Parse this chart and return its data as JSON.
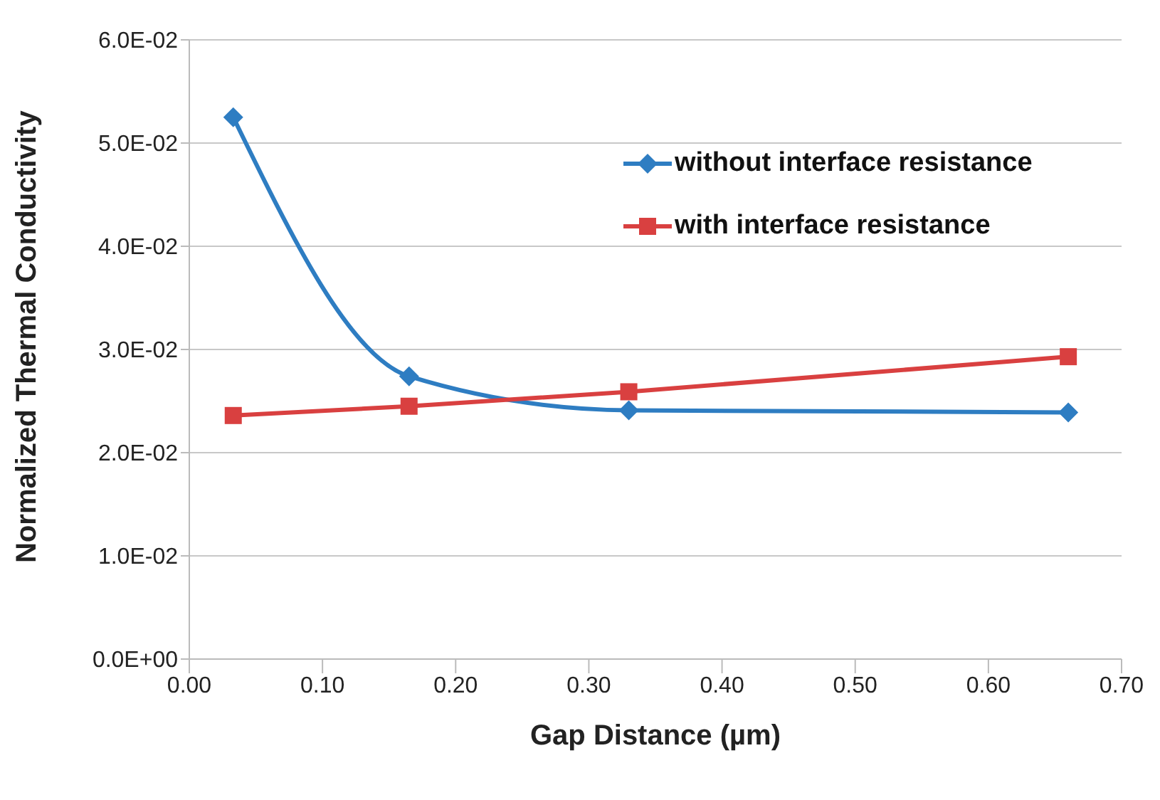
{
  "chart_data": {
    "type": "line",
    "xlabel": "Gap Distance (µm)",
    "ylabel": "Normalized Thermal Conductivity",
    "x": [
      0.033,
      0.165,
      0.33,
      0.66
    ],
    "series": [
      {
        "name": "without interface resistance",
        "color": "#2e7dc2",
        "marker": "diamond",
        "values": [
          0.0525,
          0.0274,
          0.0241,
          0.0239
        ]
      },
      {
        "name": "with interface resistance",
        "color": "#d94040",
        "marker": "square",
        "values": [
          0.0236,
          0.0245,
          0.0259,
          0.0293
        ]
      }
    ],
    "xlim": [
      0,
      0.7
    ],
    "xticks": [
      {
        "value": 0,
        "label": "0.00"
      },
      {
        "value": 0.1,
        "label": "0.10"
      },
      {
        "value": 0.2,
        "label": "0.20"
      },
      {
        "value": 0.3,
        "label": "0.30"
      },
      {
        "value": 0.4,
        "label": "0.40"
      },
      {
        "value": 0.5,
        "label": "0.50"
      },
      {
        "value": 0.6,
        "label": "0.60"
      },
      {
        "value": 0.7,
        "label": "0.70"
      }
    ],
    "ylim": [
      0,
      0.06
    ],
    "yticks": [
      {
        "value": 0,
        "label": "0.0E+00"
      },
      {
        "value": 0.01,
        "label": "1.0E-02"
      },
      {
        "value": 0.02,
        "label": "2.0E-02"
      },
      {
        "value": 0.03,
        "label": "3.0E-02"
      },
      {
        "value": 0.04,
        "label": "4.0E-02"
      },
      {
        "value": 0.05,
        "label": "5.0E-02"
      },
      {
        "value": 0.06,
        "label": "6.0E-02"
      }
    ],
    "grid": "y",
    "legend": "top right",
    "line_style": "solid"
  }
}
